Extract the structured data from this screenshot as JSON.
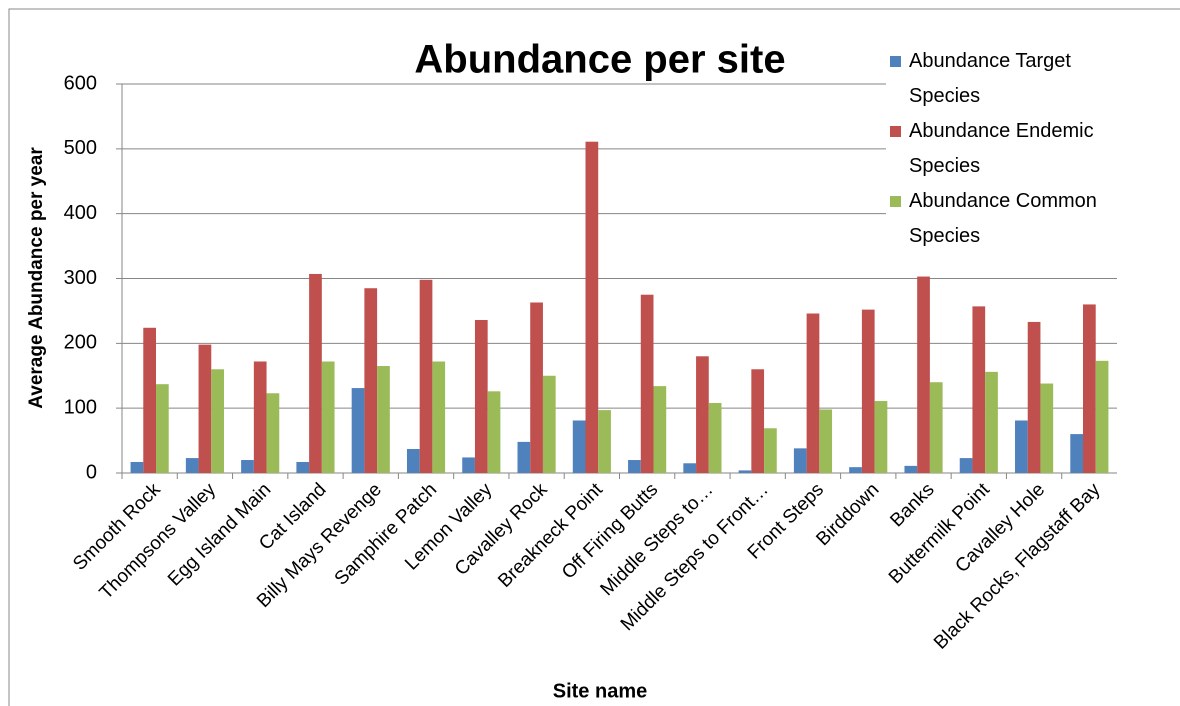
{
  "chart_data": {
    "type": "bar",
    "title": "Abundance per site",
    "x_label": "Site name",
    "y_label": "Average Abundance per year",
    "categories": [
      "Smooth Rock",
      "Thompsons Valley",
      "Egg Island Main",
      "Cat Island",
      "Billy Mays Revenge",
      "Samphire Patch",
      "Lemon Valley",
      "Cavalley Rock",
      "Breakneck Point",
      "Off Firing Butts",
      "Middle Steps to…",
      "Middle Steps to Front…",
      "Front Steps",
      "Birddown",
      "Banks",
      "Buttermilk Point",
      "Cavalley Hole",
      "Black Rocks, Flagstaff Bay"
    ],
    "series": [
      {
        "name": "Abundance Target Species",
        "color": "#4f81bd",
        "values": [
          17,
          23,
          20,
          17,
          131,
          37,
          24,
          48,
          81,
          20,
          15,
          4,
          38,
          9,
          11,
          23,
          81,
          60
        ]
      },
      {
        "name": "Abundance Endemic Species",
        "color": "#c0504d",
        "values": [
          224,
          198,
          172,
          307,
          285,
          298,
          236,
          263,
          511,
          275,
          180,
          160,
          246,
          252,
          303,
          257,
          233,
          260
        ]
      },
      {
        "name": "Abundance Common Species",
        "color": "#9bbb59",
        "values": [
          137,
          160,
          123,
          172,
          165,
          172,
          126,
          150,
          97,
          134,
          108,
          69,
          98,
          111,
          140,
          156,
          138,
          173
        ]
      }
    ],
    "ylim": [
      0,
      600
    ],
    "yticks": [
      0,
      100,
      200,
      300,
      400,
      500,
      600
    ],
    "grid": true,
    "legend": "top-right"
  }
}
